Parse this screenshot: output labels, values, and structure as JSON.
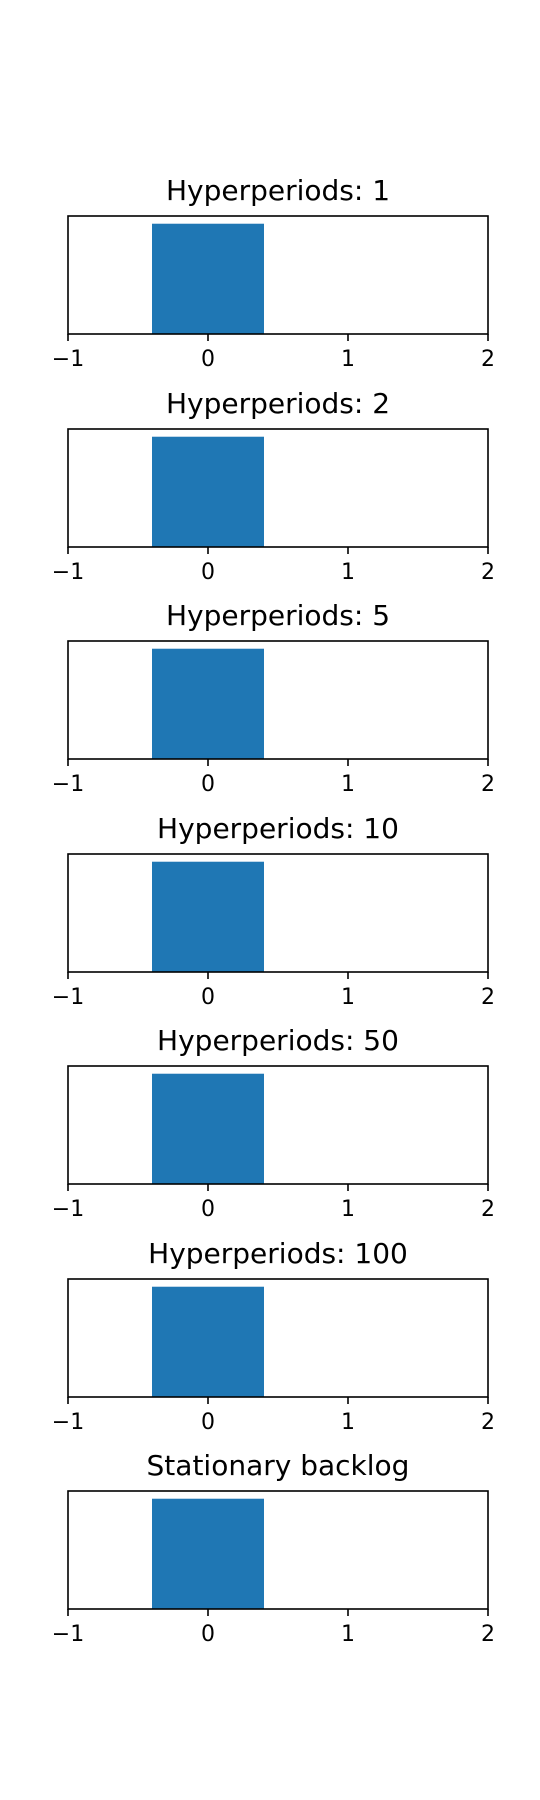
{
  "colors": {
    "bar": "#1f77b4",
    "axes": "#000000",
    "background": "#ffffff"
  },
  "chart_data": [
    {
      "type": "bar",
      "title": "Hyperperiods: 1",
      "x": [
        0
      ],
      "values": [
        1
      ],
      "bar_width": 0.8,
      "xlim": [
        -1,
        2
      ],
      "ylim": [
        0,
        1.07
      ],
      "xticks": [
        -1,
        0,
        1,
        2
      ],
      "xtick_labels": [
        "−1",
        "0",
        "1",
        "2"
      ],
      "yticks_visible": false,
      "grid": false
    },
    {
      "type": "bar",
      "title": "Hyperperiods: 2",
      "x": [
        0
      ],
      "values": [
        1
      ],
      "bar_width": 0.8,
      "xlim": [
        -1,
        2
      ],
      "ylim": [
        0,
        1.07
      ],
      "xticks": [
        -1,
        0,
        1,
        2
      ],
      "xtick_labels": [
        "−1",
        "0",
        "1",
        "2"
      ],
      "yticks_visible": false,
      "grid": false
    },
    {
      "type": "bar",
      "title": "Hyperperiods: 5",
      "x": [
        0
      ],
      "values": [
        1
      ],
      "bar_width": 0.8,
      "xlim": [
        -1,
        2
      ],
      "ylim": [
        0,
        1.07
      ],
      "xticks": [
        -1,
        0,
        1,
        2
      ],
      "xtick_labels": [
        "−1",
        "0",
        "1",
        "2"
      ],
      "yticks_visible": false,
      "grid": false
    },
    {
      "type": "bar",
      "title": "Hyperperiods: 10",
      "x": [
        0
      ],
      "values": [
        1
      ],
      "bar_width": 0.8,
      "xlim": [
        -1,
        2
      ],
      "ylim": [
        0,
        1.07
      ],
      "xticks": [
        -1,
        0,
        1,
        2
      ],
      "xtick_labels": [
        "−1",
        "0",
        "1",
        "2"
      ],
      "yticks_visible": false,
      "grid": false
    },
    {
      "type": "bar",
      "title": "Hyperperiods: 50",
      "x": [
        0
      ],
      "values": [
        1
      ],
      "bar_width": 0.8,
      "xlim": [
        -1,
        2
      ],
      "ylim": [
        0,
        1.07
      ],
      "xticks": [
        -1,
        0,
        1,
        2
      ],
      "xtick_labels": [
        "−1",
        "0",
        "1",
        "2"
      ],
      "yticks_visible": false,
      "grid": false
    },
    {
      "type": "bar",
      "title": "Hyperperiods: 100",
      "x": [
        0
      ],
      "values": [
        1
      ],
      "bar_width": 0.8,
      "xlim": [
        -1,
        2
      ],
      "ylim": [
        0,
        1.07
      ],
      "xticks": [
        -1,
        0,
        1,
        2
      ],
      "xtick_labels": [
        "−1",
        "0",
        "1",
        "2"
      ],
      "yticks_visible": false,
      "grid": false
    },
    {
      "type": "bar",
      "title": "Stationary backlog",
      "x": [
        0
      ],
      "values": [
        1
      ],
      "bar_width": 0.8,
      "xlim": [
        -1,
        2
      ],
      "ylim": [
        0,
        1.07
      ],
      "xticks": [
        -1,
        0,
        1,
        2
      ],
      "xtick_labels": [
        "−1",
        "0",
        "1",
        "2"
      ],
      "yticks_visible": false,
      "grid": false
    }
  ]
}
